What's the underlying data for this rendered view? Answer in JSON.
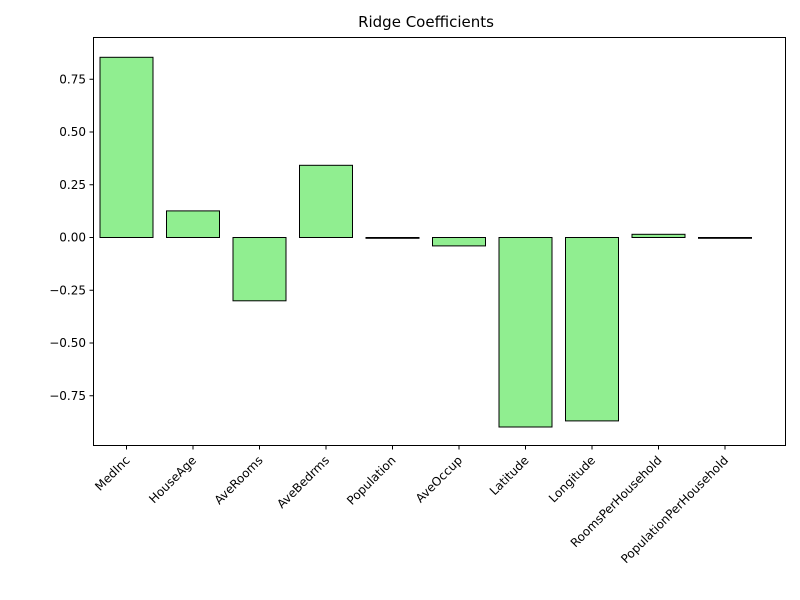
{
  "chart_data": {
    "type": "bar",
    "title": "Ridge Coefficients",
    "xlabel": "",
    "ylabel": "",
    "categories": [
      "MedInc",
      "HouseAge",
      "AveRooms",
      "AveBedrms",
      "Population",
      "AveOccup",
      "Latitude",
      "Longitude",
      "RoomsPerHousehold",
      "PopulationPerHousehold"
    ],
    "values": [
      0.854,
      0.126,
      -0.3,
      0.342,
      -0.002,
      -0.04,
      -0.898,
      -0.869,
      0.015,
      -0.003
    ],
    "ylim": [
      -0.98,
      0.94
    ],
    "yticks": [
      -0.75,
      -0.5,
      -0.25,
      0.0,
      0.25,
      0.5,
      0.75
    ],
    "ytick_labels": [
      "−0.75",
      "−0.50",
      "−0.25",
      "0.00",
      "0.25",
      "0.50",
      "0.75"
    ],
    "bar_color": "#90ee90",
    "edge_color": "#000000",
    "grid": false,
    "legend": "none"
  }
}
